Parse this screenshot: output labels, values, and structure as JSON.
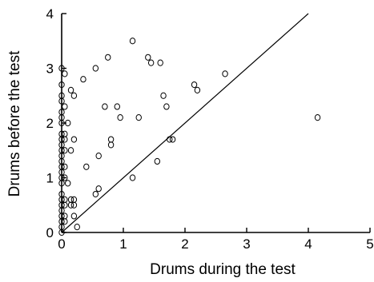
{
  "chart_data": {
    "type": "scatter",
    "title": "",
    "xlabel": "Drums during the test",
    "ylabel": "Drums before the test",
    "xlim": [
      0,
      5
    ],
    "ylim": [
      0,
      4
    ],
    "x_ticks": [
      "0",
      "1",
      "2",
      "3",
      "4",
      "5"
    ],
    "y_ticks": [
      "0",
      "1",
      "2",
      "3",
      "4"
    ],
    "grid": false,
    "legend": "none",
    "reference_line": {
      "x": [
        0,
        4
      ],
      "y": [
        0,
        4
      ]
    },
    "series": [
      {
        "points": [
          [
            0.0,
            3.0
          ],
          [
            0.0,
            2.7
          ],
          [
            0.0,
            2.5
          ],
          [
            0.0,
            2.4
          ],
          [
            0.0,
            2.2
          ],
          [
            0.0,
            2.1
          ],
          [
            0.0,
            2.0
          ],
          [
            0.0,
            1.8
          ],
          [
            0.0,
            1.7
          ],
          [
            0.0,
            1.6
          ],
          [
            0.0,
            1.5
          ],
          [
            0.0,
            1.4
          ],
          [
            0.0,
            1.3
          ],
          [
            0.0,
            1.2
          ],
          [
            0.0,
            1.1
          ],
          [
            0.0,
            1.0
          ],
          [
            0.0,
            0.9
          ],
          [
            0.0,
            0.7
          ],
          [
            0.0,
            0.6
          ],
          [
            0.0,
            0.5
          ],
          [
            0.0,
            0.4
          ],
          [
            0.0,
            0.3
          ],
          [
            0.0,
            0.2
          ],
          [
            0.0,
            0.1
          ],
          [
            0.0,
            0.0
          ],
          [
            0.05,
            2.9
          ],
          [
            0.05,
            2.3
          ],
          [
            0.05,
            1.8
          ],
          [
            0.05,
            1.7
          ],
          [
            0.05,
            1.5
          ],
          [
            0.05,
            1.2
          ],
          [
            0.05,
            1.0
          ],
          [
            0.05,
            0.6
          ],
          [
            0.05,
            0.5
          ],
          [
            0.05,
            0.3
          ],
          [
            0.05,
            0.2
          ],
          [
            0.1,
            2.0
          ],
          [
            0.1,
            0.9
          ],
          [
            0.15,
            2.6
          ],
          [
            0.15,
            1.5
          ],
          [
            0.15,
            0.6
          ],
          [
            0.15,
            0.5
          ],
          [
            0.2,
            2.5
          ],
          [
            0.2,
            1.7
          ],
          [
            0.2,
            0.6
          ],
          [
            0.2,
            0.5
          ],
          [
            0.2,
            0.3
          ],
          [
            0.25,
            0.1
          ],
          [
            0.35,
            2.8
          ],
          [
            0.4,
            1.2
          ],
          [
            0.55,
            3.0
          ],
          [
            0.55,
            0.7
          ],
          [
            0.6,
            1.4
          ],
          [
            0.6,
            0.8
          ],
          [
            0.7,
            2.3
          ],
          [
            0.75,
            3.2
          ],
          [
            0.8,
            1.7
          ],
          [
            0.8,
            1.6
          ],
          [
            0.9,
            2.3
          ],
          [
            0.95,
            2.1
          ],
          [
            1.15,
            3.5
          ],
          [
            1.15,
            1.0
          ],
          [
            1.25,
            2.1
          ],
          [
            1.4,
            3.2
          ],
          [
            1.45,
            3.1
          ],
          [
            1.55,
            1.3
          ],
          [
            1.6,
            3.1
          ],
          [
            1.65,
            2.5
          ],
          [
            1.7,
            2.3
          ],
          [
            1.75,
            1.7
          ],
          [
            1.8,
            1.7
          ],
          [
            2.15,
            2.7
          ],
          [
            2.2,
            2.6
          ],
          [
            2.65,
            2.9
          ],
          [
            4.15,
            2.1
          ]
        ]
      }
    ]
  }
}
